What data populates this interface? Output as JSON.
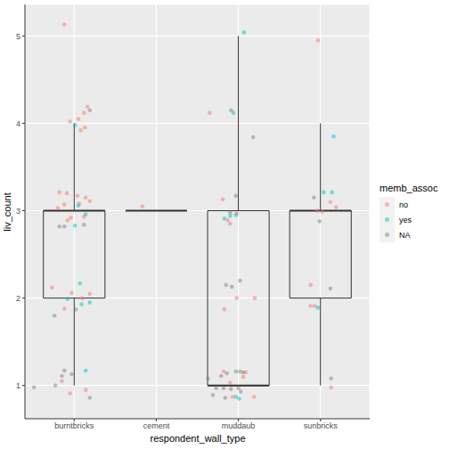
{
  "chart_data": {
    "type": "box",
    "x_label": "respondent_wall_type",
    "y_label": "liv_count",
    "legend_title": "memb_assoc",
    "legend": "right",
    "grid": true,
    "xlim": [
      0.4,
      4.6
    ],
    "xticks": [
      {
        "value": 1,
        "label": "burntbricks"
      },
      {
        "value": 2,
        "label": "cement"
      },
      {
        "value": 3,
        "label": "muddaub"
      },
      {
        "value": 4,
        "label": "sunbricks"
      }
    ],
    "ylim": [
      0.62,
      5.36
    ],
    "yticks": [
      1,
      2,
      3,
      4,
      5
    ],
    "boxes": [
      {
        "x": 1,
        "q1": 2,
        "median": 3,
        "q3": 3,
        "whisker_low": 1,
        "whisker_high": 4
      },
      {
        "x": 2,
        "q1": 3,
        "median": 3,
        "q3": 3,
        "whisker_low": 3,
        "whisker_high": 3
      },
      {
        "x": 3,
        "q1": 1,
        "median": 1,
        "q3": 3,
        "whisker_low": 1,
        "whisker_high": 5
      },
      {
        "x": 4,
        "q1": 2,
        "median": 3,
        "q3": 3,
        "whisker_low": 1,
        "whisker_high": 4
      }
    ],
    "series": [
      {
        "name": "no",
        "color": "#F8766D",
        "type": "scatter",
        "x": [
          0.88,
          1.16,
          1.12,
          1.05,
          0.95,
          1.13,
          1.08,
          0.82,
          0.91,
          1.04,
          1.14,
          1.19,
          0.88,
          1.06,
          0.8,
          0.96,
          1.12,
          0.92,
          0.73,
          0.97,
          0.88,
          1.1,
          1.19,
          1.14,
          0.95,
          0.85,
          1.83,
          2.65,
          2.81,
          2.87,
          2.98,
          2.9,
          2.83,
          2.98,
          3.2,
          2.82,
          3.09,
          3.06,
          3.19,
          2.93,
          2.9,
          3.97,
          4.19,
          4.02,
          3.96,
          3.88,
          3.88,
          3.93,
          4.13,
          4.12
        ],
        "y": [
          5.13,
          4.19,
          4.12,
          4.05,
          4.02,
          3.95,
          3.92,
          3.21,
          3.2,
          3.17,
          3.15,
          3.11,
          3.07,
          3.08,
          3.03,
          2.92,
          2.93,
          2.89,
          2.12,
          2.06,
          1.88,
          2.0,
          2.05,
          0.95,
          0.91,
          1.05,
          3.05,
          4.12,
          3.13,
          2.89,
          2.97,
          2.85,
          1.87,
          2.0,
          2.0,
          1.16,
          1.15,
          1.1,
          0.87,
          0.87,
          1.03,
          4.95,
          3.04,
          2.99,
          3.0,
          2.15,
          1.91,
          1.91,
          0.98,
          3.1
        ]
      },
      {
        "name": "yes",
        "color": "#00BFC4",
        "type": "scatter",
        "x": [
          1.01,
          1.05,
          1.14,
          1.01,
          1.07,
          1.19,
          0.92,
          1.09,
          1.14,
          3.07,
          2.94,
          2.83,
          2.97,
          2.9,
          2.97,
          3.01,
          4.16,
          4.04,
          4.14,
          3.97
        ],
        "y": [
          3.98,
          3.06,
          2.96,
          2.83,
          2.17,
          1.95,
          1.99,
          1.93,
          1.17,
          5.04,
          4.12,
          2.91,
          2.95,
          2.94,
          0.87,
          0.85,
          3.85,
          3.21,
          3.21,
          1.89
        ]
      },
      {
        "name": "NA",
        "color": "#7F7F7F",
        "type": "scatter",
        "x": [
          1.19,
          0.82,
          0.88,
          1.12,
          0.76,
          1.02,
          0.88,
          0.97,
          0.85,
          0.77,
          1.19,
          0.51,
          2.91,
          3.18,
          2.97,
          2.9,
          3.02,
          2.85,
          2.92,
          3.02,
          3.06,
          2.97,
          2.86,
          2.79,
          2.63,
          2.73,
          2.82,
          2.91,
          3.0,
          3.03,
          2.84,
          2.69,
          3.92,
          3.99,
          4.12,
          4.13
        ],
        "y": [
          4.15,
          2.82,
          2.82,
          2.84,
          1.8,
          1.87,
          1.17,
          1.13,
          1.11,
          1.0,
          0.86,
          0.98,
          4.15,
          3.84,
          3.17,
          2.98,
          2.2,
          2.15,
          2.13,
          1.16,
          1.15,
          1.16,
          1.14,
          1.11,
          1.08,
          0.97,
          0.97,
          0.96,
          0.97,
          0.93,
          0.86,
          0.89,
          3.15,
          2.88,
          2.11,
          1.08
        ]
      }
    ]
  }
}
